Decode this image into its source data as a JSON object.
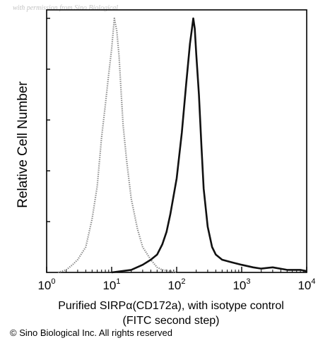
{
  "watermark": "with permission from Sino Biological",
  "copyright": "© Sino Biological Inc. All rights reserved",
  "chart_data": {
    "type": "line",
    "title": "",
    "xlabel_line1": "Purified SIRPα(CD172a), with isotype control",
    "xlabel_line2": "(FITC second step)",
    "ylabel": "Relative Cell Number",
    "xscale": "log",
    "xlim": [
      1,
      10000
    ],
    "ylim": [
      0,
      100
    ],
    "grid": false,
    "legend": "none",
    "x_ticks": [
      {
        "base": "10",
        "exp": "0",
        "value": 1
      },
      {
        "base": "10",
        "exp": "1",
        "value": 10
      },
      {
        "base": "10",
        "exp": "2",
        "value": 100
      },
      {
        "base": "10",
        "exp": "3",
        "value": 1000
      },
      {
        "base": "10",
        "exp": "4",
        "value": 10000
      }
    ],
    "y_ticks": [
      0,
      20,
      40,
      60,
      80,
      100
    ],
    "series": [
      {
        "style": "dotted",
        "color": "#8a8a8a",
        "x": [
          1.5,
          2,
          2.5,
          3,
          4,
          5,
          6,
          7,
          8,
          9,
          10,
          11,
          12,
          13,
          14,
          15,
          17,
          20,
          25,
          30,
          40,
          50,
          60,
          80,
          100
        ],
        "y": [
          0,
          1,
          3,
          5,
          10,
          21,
          34,
          53,
          66,
          78,
          88,
          100,
          95,
          85,
          71,
          58,
          44,
          29,
          17,
          10,
          5,
          2,
          1,
          0.5,
          0
        ]
      },
      {
        "style": "solid",
        "color": "#111111",
        "x": [
          10,
          20,
          30,
          40,
          50,
          60,
          70,
          80,
          100,
          120,
          140,
          160,
          170,
          180,
          190,
          200,
          220,
          240,
          260,
          300,
          350,
          400,
          500,
          700,
          1000,
          1500,
          2000,
          3000,
          5000,
          8000,
          10000
        ],
        "y": [
          0,
          1,
          3,
          5,
          7,
          11,
          16,
          23,
          37,
          55,
          74,
          90,
          95,
          100,
          96,
          86,
          70,
          50,
          33,
          18,
          10,
          7,
          5,
          4,
          3,
          2,
          1.5,
          2,
          1,
          1,
          0.5
        ]
      }
    ]
  }
}
